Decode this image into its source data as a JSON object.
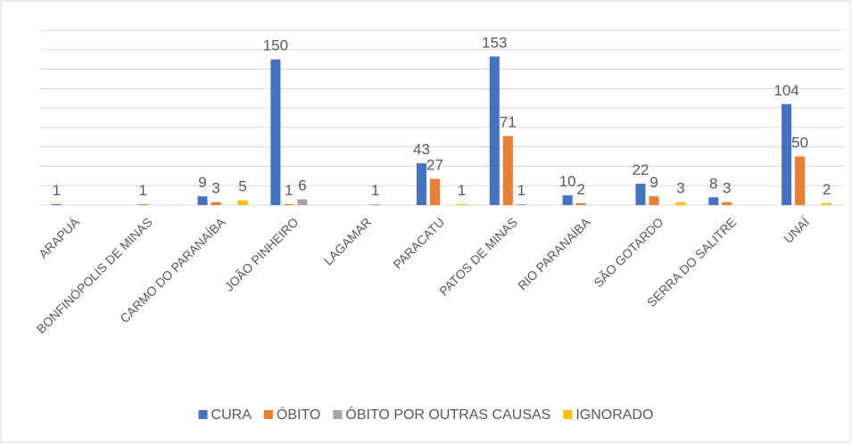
{
  "chart_data": {
    "type": "bar",
    "categories": [
      "ARAPUÁ",
      "BONFINÓPOLIS DE MINAS",
      "CARMO DO PARANAÍBA",
      "JOÃO PINHEIRO",
      "LAGAMAR",
      "PARACATU",
      "PATOS DE MINAS",
      "RIO PARANAÍBA",
      "SÃO GOTARDO",
      "SERRA DO SALITRE",
      "UNAÍ"
    ],
    "series": [
      {
        "name": "CURA",
        "color": "#4472c4",
        "values": [
          1,
          null,
          9,
          150,
          null,
          43,
          153,
          10,
          22,
          8,
          104
        ]
      },
      {
        "name": "ÓBITO",
        "color": "#ed7d31",
        "values": [
          null,
          1,
          3,
          1,
          null,
          27,
          71,
          2,
          9,
          3,
          50
        ]
      },
      {
        "name": "ÓBITO POR OUTRAS CAUSAS",
        "color": "#a5a5a5",
        "values": [
          null,
          null,
          null,
          6,
          1,
          null,
          1,
          null,
          null,
          null,
          null
        ]
      },
      {
        "name": "IGNORADO",
        "color": "#ffc000",
        "values": [
          null,
          null,
          5,
          null,
          null,
          1,
          null,
          null,
          3,
          null,
          2
        ]
      }
    ],
    "ylim": [
      0,
      180
    ],
    "yticks": [
      0,
      20,
      40,
      60,
      80,
      100,
      120,
      140,
      160,
      180
    ],
    "grid": true,
    "legend": "bottom"
  }
}
